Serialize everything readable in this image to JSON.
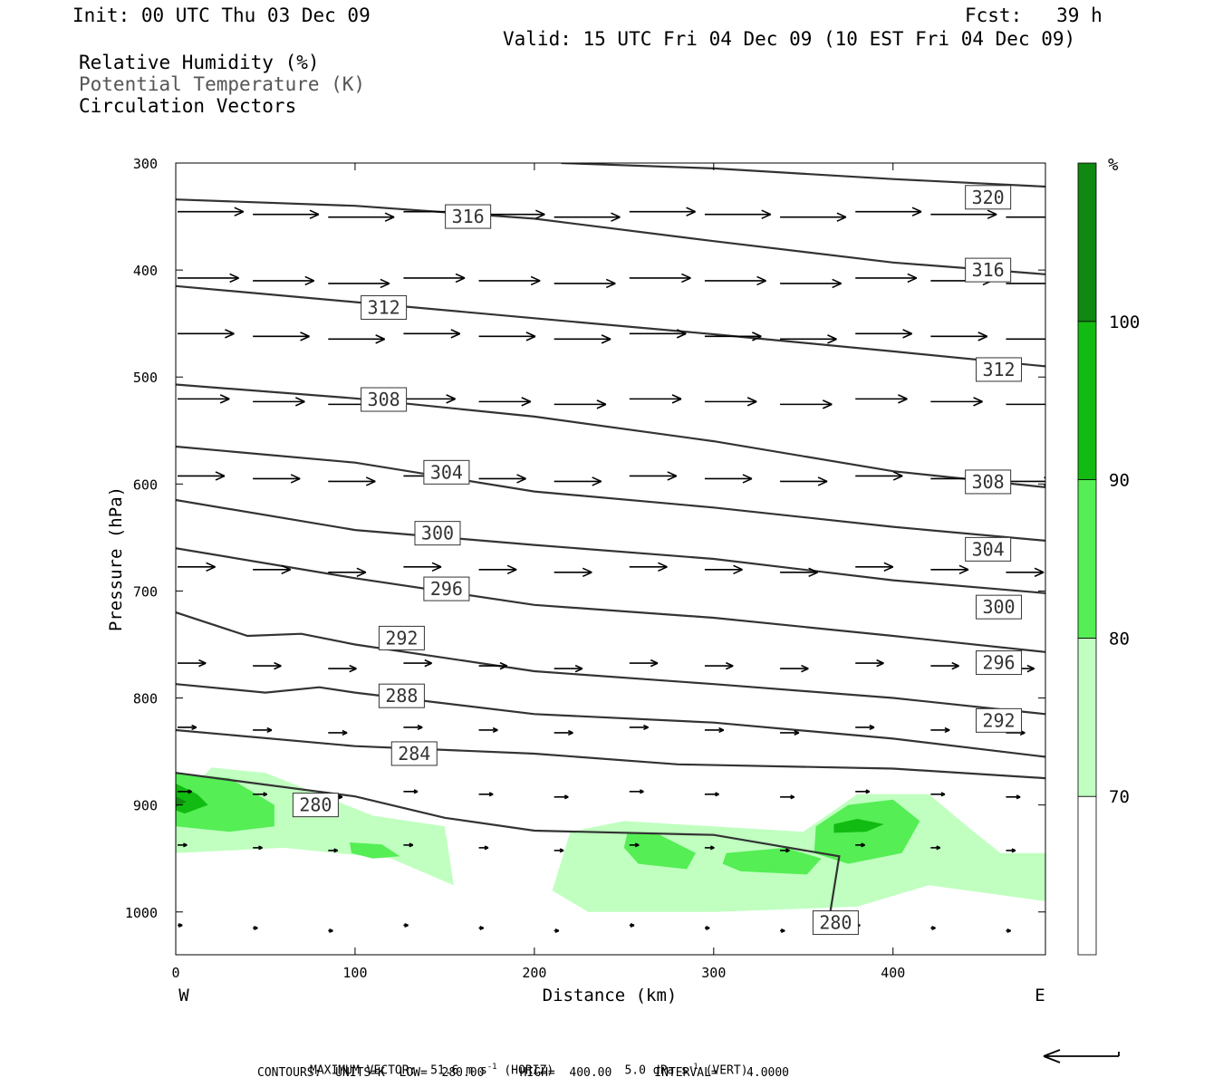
{
  "header": {
    "init": "Init: 00 UTC Thu 03 Dec 09",
    "fcst": "Fcst:   39 h",
    "valid": "Valid: 15 UTC Fri 04 Dec 09 (10 EST Fri 04 Dec 09)",
    "fields": [
      "Relative Humidity (%)",
      "Potential Temperature (K)",
      "Circulation Vectors"
    ]
  },
  "footer": {
    "max_vector_label": "MAXIMUM VECTOR:",
    "horiz": "51.6 m s",
    "horiz_unit": "(HORIZ)",
    "vert": "5.0 dPa s",
    "vert_unit": "(VERT)",
    "exp": "-1",
    "contours": "CONTOURS:  UNITS=K  LOW=  280.00     HIGH=  400.00      INTERVAL=    4.0000"
  },
  "colors": {
    "rh70": "#c0ffc0",
    "rh80": "#55ee55",
    "rh90": "#11bb11",
    "rh100": "#118811",
    "contour": "#333333",
    "vector": "#000000"
  },
  "chart_data": {
    "type": "contour-cross-section",
    "xlabel": "Distance (km)",
    "ylabel": "Pressure (hPa)",
    "xlim": [
      0,
      485
    ],
    "ylim": [
      1040,
      300
    ],
    "x_ticks": [
      0,
      100,
      200,
      300,
      400
    ],
    "y_ticks": [
      300,
      400,
      500,
      600,
      700,
      800,
      900,
      1000
    ],
    "x_end_labels": [
      "W",
      "E"
    ],
    "colorbar": {
      "unit": "%",
      "levels": [
        70,
        80,
        90,
        100
      ]
    },
    "isentropes": [
      {
        "theta": 320,
        "points": [
          [
            215,
            300
          ],
          [
            300,
            305
          ],
          [
            400,
            315
          ],
          [
            485,
            322
          ]
        ]
      },
      {
        "theta": 316,
        "points": [
          [
            0,
            334
          ],
          [
            100,
            340
          ],
          [
            200,
            352
          ],
          [
            300,
            373
          ],
          [
            400,
            393
          ],
          [
            485,
            404
          ]
        ]
      },
      {
        "theta": 312,
        "points": [
          [
            0,
            415
          ],
          [
            100,
            430
          ],
          [
            200,
            445
          ],
          [
            300,
            460
          ],
          [
            400,
            476
          ],
          [
            485,
            490
          ]
        ]
      },
      {
        "theta": 308,
        "points": [
          [
            0,
            507
          ],
          [
            100,
            520
          ],
          [
            200,
            537
          ],
          [
            300,
            560
          ],
          [
            400,
            588
          ],
          [
            485,
            603
          ]
        ]
      },
      {
        "theta": 304,
        "points": [
          [
            0,
            565
          ],
          [
            100,
            580
          ],
          [
            200,
            607
          ],
          [
            300,
            622
          ],
          [
            400,
            640
          ],
          [
            485,
            653
          ]
        ]
      },
      {
        "theta": 300,
        "points": [
          [
            0,
            615
          ],
          [
            100,
            643
          ],
          [
            200,
            657
          ],
          [
            300,
            670
          ],
          [
            400,
            690
          ],
          [
            485,
            702
          ]
        ]
      },
      {
        "theta": 296,
        "points": [
          [
            0,
            660
          ],
          [
            100,
            688
          ],
          [
            200,
            713
          ],
          [
            300,
            725
          ],
          [
            400,
            742
          ],
          [
            485,
            757
          ]
        ]
      },
      {
        "theta": 292,
        "points": [
          [
            0,
            720
          ],
          [
            40,
            742
          ],
          [
            70,
            740
          ],
          [
            100,
            750
          ],
          [
            200,
            775
          ],
          [
            300,
            787
          ],
          [
            400,
            800
          ],
          [
            485,
            815
          ]
        ]
      },
      {
        "theta": 288,
        "points": [
          [
            0,
            787
          ],
          [
            50,
            795
          ],
          [
            80,
            790
          ],
          [
            100,
            795
          ],
          [
            200,
            815
          ],
          [
            300,
            823
          ],
          [
            400,
            838
          ],
          [
            485,
            855
          ]
        ]
      },
      {
        "theta": 284,
        "points": [
          [
            0,
            830
          ],
          [
            100,
            845
          ],
          [
            200,
            852
          ],
          [
            280,
            862
          ],
          [
            400,
            866
          ],
          [
            485,
            875
          ]
        ]
      },
      {
        "theta": 280,
        "points": [
          [
            0,
            870
          ],
          [
            100,
            892
          ],
          [
            150,
            912
          ],
          [
            200,
            924
          ],
          [
            300,
            928
          ],
          [
            370,
            948
          ],
          [
            365,
            1000
          ],
          [
            358,
            1020
          ]
        ]
      }
    ],
    "isentrope_labels": [
      {
        "text": "320",
        "x": 453,
        "p": 332
      },
      {
        "text": "316",
        "x": 163,
        "p": 350
      },
      {
        "text": "316",
        "x": 453,
        "p": 400
      },
      {
        "text": "312",
        "x": 116,
        "p": 435
      },
      {
        "text": "312",
        "x": 459,
        "p": 493
      },
      {
        "text": "308",
        "x": 116,
        "p": 521
      },
      {
        "text": "308",
        "x": 453,
        "p": 598
      },
      {
        "text": "304",
        "x": 151,
        "p": 589
      },
      {
        "text": "304",
        "x": 453,
        "p": 661
      },
      {
        "text": "300",
        "x": 146,
        "p": 646
      },
      {
        "text": "300",
        "x": 459,
        "p": 715
      },
      {
        "text": "296",
        "x": 151,
        "p": 698
      },
      {
        "text": "296",
        "x": 459,
        "p": 767
      },
      {
        "text": "292",
        "x": 126,
        "p": 744
      },
      {
        "text": "292",
        "x": 459,
        "p": 821
      },
      {
        "text": "288",
        "x": 126,
        "p": 798
      },
      {
        "text": "284",
        "x": 133,
        "p": 852
      },
      {
        "text": "280",
        "x": 78,
        "p": 900
      },
      {
        "text": "280",
        "x": 368,
        "p": 1010
      }
    ],
    "rh_areas": [
      {
        "level": 70,
        "points": [
          [
            0,
            900
          ],
          [
            20,
            865
          ],
          [
            50,
            870
          ],
          [
            80,
            890
          ],
          [
            110,
            910
          ],
          [
            150,
            920
          ],
          [
            155,
            975
          ],
          [
            120,
            950
          ],
          [
            60,
            940
          ],
          [
            0,
            945
          ]
        ]
      },
      {
        "level": 70,
        "points": [
          [
            220,
            925
          ],
          [
            250,
            915
          ],
          [
            300,
            920
          ],
          [
            350,
            925
          ],
          [
            380,
            890
          ],
          [
            420,
            890
          ],
          [
            445,
            925
          ],
          [
            460,
            945
          ],
          [
            485,
            945
          ],
          [
            485,
            990
          ],
          [
            420,
            975
          ],
          [
            380,
            995
          ],
          [
            300,
            1000
          ],
          [
            230,
            1000
          ],
          [
            210,
            980
          ]
        ]
      },
      {
        "level": 80,
        "points": [
          [
            0,
            870
          ],
          [
            30,
            875
          ],
          [
            55,
            900
          ],
          [
            55,
            920
          ],
          [
            30,
            925
          ],
          [
            0,
            920
          ]
        ]
      },
      {
        "level": 80,
        "points": [
          [
            97,
            935
          ],
          [
            115,
            937
          ],
          [
            125,
            948
          ],
          [
            110,
            950
          ],
          [
            98,
            945
          ]
        ]
      },
      {
        "level": 80,
        "points": [
          [
            252,
            925
          ],
          [
            270,
            928
          ],
          [
            290,
            945
          ],
          [
            285,
            960
          ],
          [
            258,
            955
          ],
          [
            250,
            940
          ]
        ]
      },
      {
        "level": 80,
        "points": [
          [
            307,
            945
          ],
          [
            340,
            940
          ],
          [
            360,
            950
          ],
          [
            352,
            965
          ],
          [
            315,
            962
          ],
          [
            305,
            955
          ]
        ]
      },
      {
        "level": 80,
        "points": [
          [
            357,
            920
          ],
          [
            375,
            900
          ],
          [
            400,
            895
          ],
          [
            415,
            915
          ],
          [
            405,
            945
          ],
          [
            375,
            955
          ],
          [
            356,
            945
          ]
        ]
      },
      {
        "level": 90,
        "points": [
          [
            0,
            880
          ],
          [
            12,
            890
          ],
          [
            18,
            900
          ],
          [
            5,
            908
          ],
          [
            0,
            905
          ]
        ]
      },
      {
        "level": 90,
        "points": [
          [
            367,
            918
          ],
          [
            380,
            913
          ],
          [
            395,
            918
          ],
          [
            385,
            925
          ],
          [
            367,
            926
          ]
        ]
      },
      {
        "level": 100,
        "points": [
          [
            0,
            892
          ],
          [
            6,
            897
          ],
          [
            0,
            902
          ]
        ]
      }
    ],
    "vector_rows": [
      {
        "p": 348,
        "start": 0,
        "len": 14
      },
      {
        "p": 410,
        "start": 0,
        "len": 13
      },
      {
        "p": 462,
        "start": 0,
        "len": 12
      },
      {
        "p": 523,
        "start": 0,
        "len": 11
      },
      {
        "p": 595,
        "start": 0,
        "len": 10
      },
      {
        "p": 680,
        "start": 0,
        "len": 8
      },
      {
        "p": 770,
        "start": 0,
        "len": 6
      },
      {
        "p": 830,
        "start": 0,
        "len": 4
      },
      {
        "p": 890,
        "start": 0,
        "len": 3
      },
      {
        "p": 940,
        "start": 0,
        "len": 2
      },
      {
        "p": 1015,
        "start": 0,
        "len": 1
      }
    ]
  }
}
